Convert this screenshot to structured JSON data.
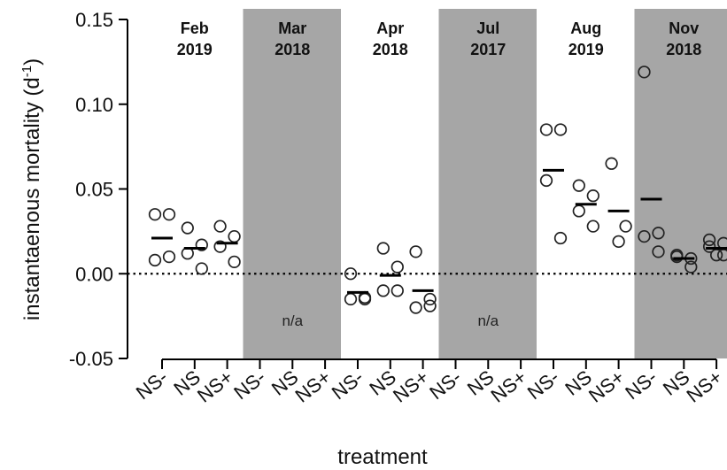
{
  "chart_data": {
    "type": "scatter",
    "ylabel": "instantaenous mortality (d",
    "ylabel_sup": "-1",
    "ylabel_close": ")",
    "xlabel": "treatment",
    "ylim": [
      -0.05,
      0.15
    ],
    "yticks": [
      -0.05,
      0.0,
      0.05,
      0.1,
      0.15
    ],
    "ytick_labels": [
      "-0.05",
      "0.00",
      "0.05",
      "0.10",
      "0.15"
    ],
    "zero_line": "dotted",
    "treatments": [
      "NS-",
      "NS",
      "NS+"
    ],
    "periods": [
      {
        "month": "Feb",
        "year": "2019",
        "shaded": false,
        "na_label": "",
        "groups": [
          {
            "treatment": "NS-",
            "mean": 0.021,
            "points": [
              0.035,
              0.035,
              0.008,
              0.01
            ]
          },
          {
            "treatment": "NS",
            "mean": 0.015,
            "points": [
              0.027,
              0.017,
              0.012,
              0.003
            ]
          },
          {
            "treatment": "NS+",
            "mean": 0.018,
            "points": [
              0.028,
              0.022,
              0.016,
              0.007
            ]
          }
        ]
      },
      {
        "month": "Mar",
        "year": "2018",
        "shaded": true,
        "na_label": "n/a",
        "groups": []
      },
      {
        "month": "Apr",
        "year": "2018",
        "shaded": false,
        "na_label": "",
        "groups": [
          {
            "treatment": "NS-",
            "mean": -0.011,
            "points": [
              0.0,
              -0.014,
              -0.015,
              -0.015
            ]
          },
          {
            "treatment": "NS",
            "mean": -0.001,
            "points": [
              0.015,
              0.004,
              -0.01,
              -0.01
            ]
          },
          {
            "treatment": "NS+",
            "mean": -0.01,
            "points": [
              0.013,
              -0.015,
              -0.02,
              -0.019
            ]
          }
        ]
      },
      {
        "month": "Jul",
        "year": "2017",
        "shaded": true,
        "na_label": "n/a",
        "groups": []
      },
      {
        "month": "Aug",
        "year": "2019",
        "shaded": false,
        "na_label": "",
        "groups": [
          {
            "treatment": "NS-",
            "mean": 0.061,
            "points": [
              0.085,
              0.085,
              0.055,
              0.021
            ]
          },
          {
            "treatment": "NS",
            "mean": 0.041,
            "points": [
              0.052,
              0.046,
              0.037,
              0.028
            ]
          },
          {
            "treatment": "NS+",
            "mean": 0.037,
            "points": [
              0.065,
              0.028,
              0.019
            ]
          }
        ]
      },
      {
        "month": "Nov",
        "year": "2018",
        "shaded": true,
        "na_label": "",
        "groups": [
          {
            "treatment": "NS-",
            "mean": 0.044,
            "points": [
              0.119,
              0.024,
              0.022,
              0.013
            ]
          },
          {
            "treatment": "NS",
            "mean": 0.009,
            "points": [
              0.011,
              0.009,
              0.01,
              0.004
            ]
          },
          {
            "treatment": "NS+",
            "mean": 0.015,
            "points": [
              0.02,
              0.018,
              0.016,
              0.011,
              0.011
            ]
          }
        ]
      }
    ],
    "colors": {
      "shade": "#a6a6a6",
      "point_stroke": "#222222",
      "mean_bar": "#000000",
      "axis": "#000000"
    }
  }
}
